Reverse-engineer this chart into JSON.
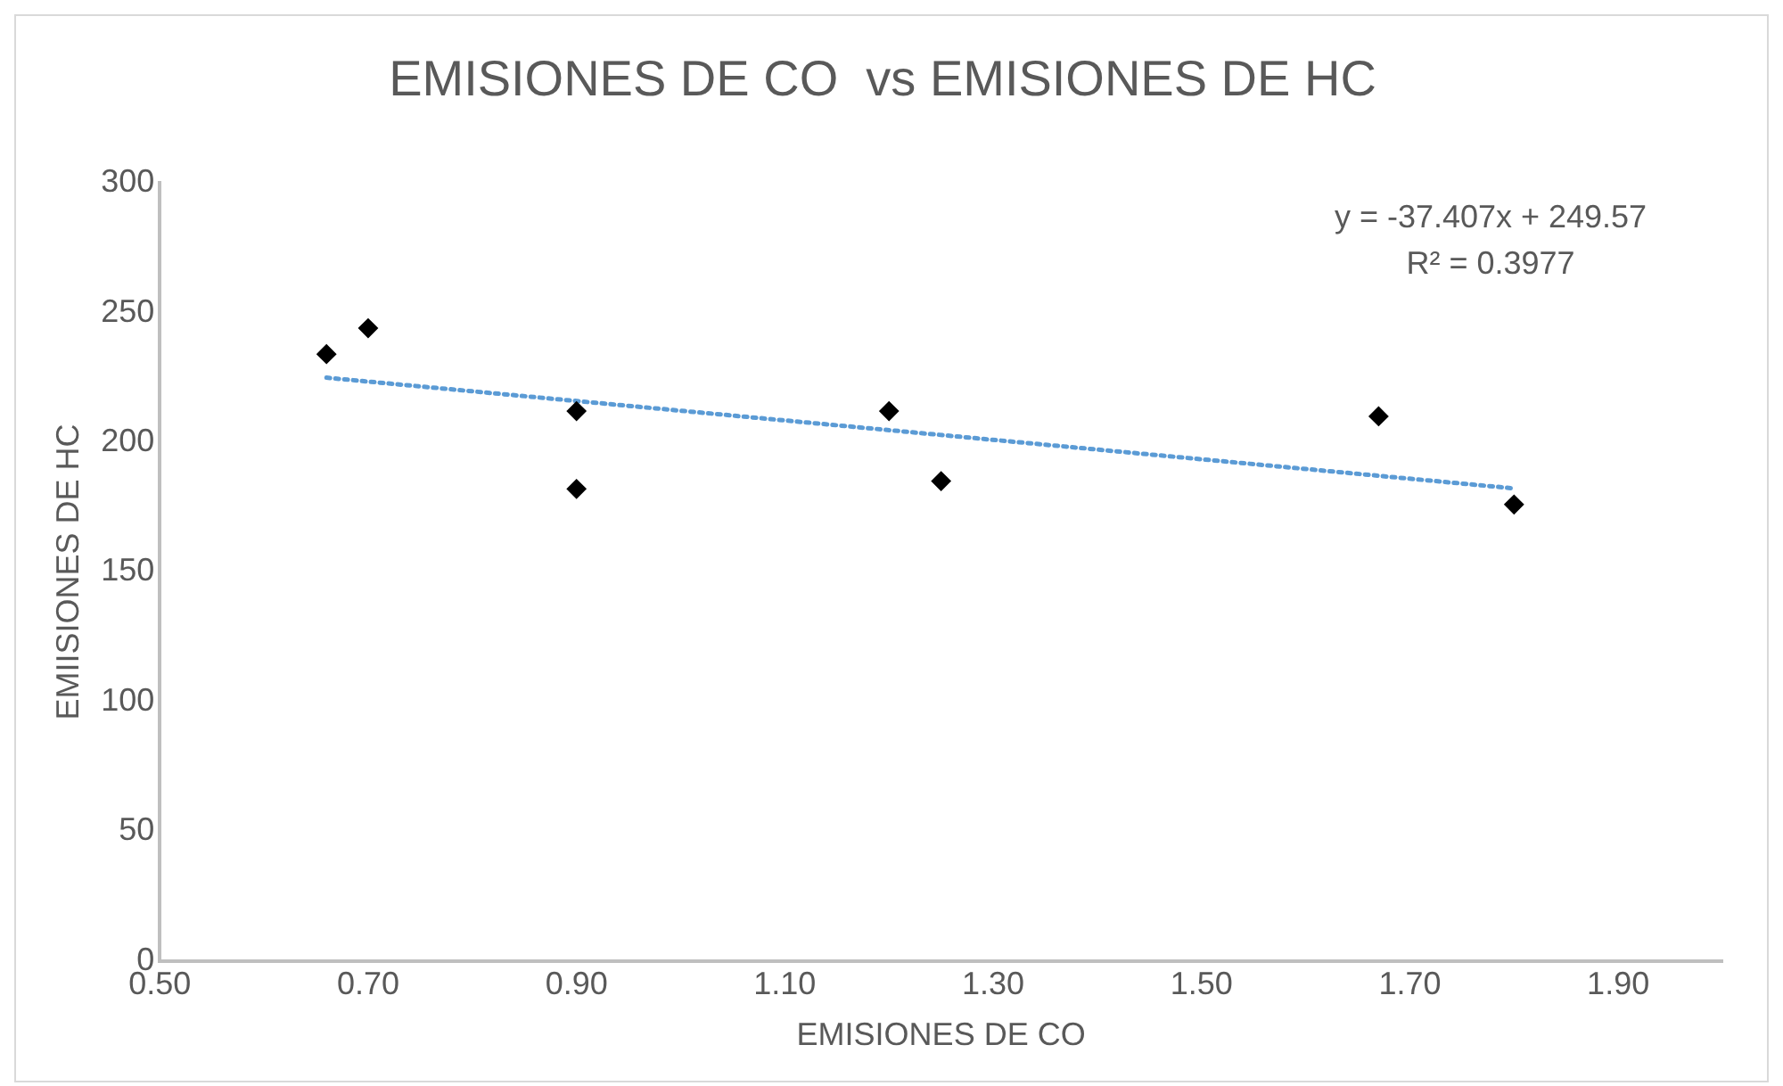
{
  "chart_data": {
    "type": "scatter",
    "title": "EMISIONES DE CO  vs EMISIONES DE HC",
    "xlabel": "EMISIONES DE CO",
    "ylabel": "EMIISIONES DE HC",
    "x": [
      0.66,
      0.7,
      0.9,
      0.9,
      1.2,
      1.25,
      1.67,
      1.8
    ],
    "series": [
      {
        "color": "#000000",
        "values": [
          234,
          244,
          212,
          182,
          212,
          185,
          210,
          176
        ],
        "marker": "diamond"
      },
      {
        "type": "line",
        "color": "#5b9bd5",
        "x": [
          0.66,
          1.8
        ],
        "values": [
          224.9,
          182.2
        ],
        "line_style": "dotted",
        "marker": "none"
      }
    ],
    "xlim": [
      0.5,
      2.0
    ],
    "xticks": [
      {
        "value": 0.5,
        "label": "0.50"
      },
      {
        "value": 0.7,
        "label": "0.70"
      },
      {
        "value": 0.9,
        "label": "0.90"
      },
      {
        "value": 1.1,
        "label": "1.10"
      },
      {
        "value": 1.3,
        "label": "1.30"
      },
      {
        "value": 1.5,
        "label": "1.50"
      },
      {
        "value": 1.7,
        "label": "1.70"
      },
      {
        "value": 1.9,
        "label": "1.90"
      }
    ],
    "ylim": [
      0,
      300
    ],
    "yticks": [
      0,
      50,
      100,
      150,
      200,
      250,
      300
    ],
    "grid": false,
    "legend": false,
    "annotations": [
      "y = -37.407x + 249.57",
      "R² = 0.3977"
    ]
  }
}
